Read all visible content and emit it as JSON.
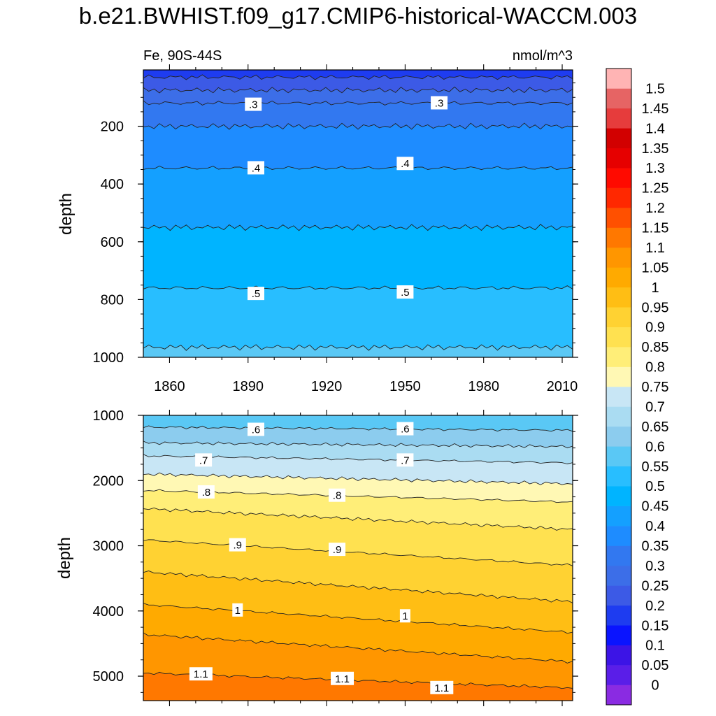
{
  "title": "b.e21.BWHIST.f09_g17.CMIP6-historical-WACCM.003",
  "colors": {
    "levels": [
      0,
      0.05,
      0.1,
      0.15,
      0.2,
      0.25,
      0.3,
      0.35,
      0.4,
      0.45,
      0.5,
      0.55,
      0.6,
      0.65,
      0.7,
      0.75,
      0.8,
      0.85,
      0.9,
      0.95,
      1,
      1.05,
      1.1,
      1.15,
      1.2,
      1.25,
      1.3,
      1.35,
      1.4,
      1.45,
      1.5
    ],
    "fills": [
      "#8a2be2",
      "#5a1ee8",
      "#3c14e6",
      "#0a14ff",
      "#1e3cf0",
      "#3c5ae6",
      "#3c6ee8",
      "#3278f0",
      "#1e8cff",
      "#14a0ff",
      "#00b4ff",
      "#28beff",
      "#5ac8f5",
      "#8cccee",
      "#aadcf2",
      "#c8e6f5",
      "#fff8b4",
      "#ffee78",
      "#ffe150",
      "#ffd232",
      "#ffbe14",
      "#ffaa00",
      "#ff9600",
      "#ff7800",
      "#ff5000",
      "#ff2800",
      "#ff0a00",
      "#e60000",
      "#d20000",
      "#e63c3c",
      "#e66464",
      "#ffb4b4"
    ]
  },
  "colorbar": {
    "labels": [
      "1.5",
      "1.45",
      "1.4",
      "1.35",
      "1.3",
      "1.25",
      "1.2",
      "1.15",
      "1.1",
      "1.05",
      "1",
      "0.95",
      "0.9",
      "0.85",
      "0.8",
      "0.75",
      "0.7",
      "0.65",
      "0.6",
      "0.55",
      "0.5",
      "0.45",
      "0.4",
      "0.35",
      "0.3",
      "0.25",
      "0.2",
      "0.15",
      "0.1",
      "0.05",
      "0"
    ]
  },
  "chart_data": [
    {
      "type": "heatmap",
      "subtype": "filled-contour",
      "left_label": "Fe, 90S-44S",
      "right_label": "nmol/m^3",
      "xlabel": "",
      "ylabel": "depth",
      "xlim": [
        1850,
        2014
      ],
      "ylim": [
        1000,
        5
      ],
      "xticks": [
        "1860",
        "1890",
        "1920",
        "1950",
        "1980",
        "2010"
      ],
      "yticks": [
        "200",
        "400",
        "600",
        "800",
        "1000"
      ],
      "contours": [
        {
          "level": 0.2,
          "depth": 30
        },
        {
          "level": 0.25,
          "depth": 75
        },
        {
          "level": 0.3,
          "depth": 120
        },
        {
          "level": 0.35,
          "depth": 200
        },
        {
          "level": 0.4,
          "depth": 345
        },
        {
          "level": 0.45,
          "depth": 550
        },
        {
          "level": 0.5,
          "depth": 760
        },
        {
          "level": 0.55,
          "depth": 965
        }
      ],
      "contour_labels": [
        {
          "text": ".3",
          "year": 1892,
          "depth": 125
        },
        {
          "text": ".3",
          "year": 1963,
          "depth": 120
        },
        {
          "text": ".4",
          "year": 1893,
          "depth": 345
        },
        {
          "text": ".4",
          "year": 1950,
          "depth": 330
        },
        {
          "text": ".5",
          "year": 1893,
          "depth": 780
        },
        {
          "text": ".5",
          "year": 1950,
          "depth": 775
        }
      ]
    },
    {
      "type": "heatmap",
      "subtype": "filled-contour",
      "xlabel": "",
      "ylabel": "depth",
      "xlim": [
        1850,
        2014
      ],
      "ylim": [
        5375,
        1000
      ],
      "yticks": [
        "1000",
        "2000",
        "3000",
        "4000",
        "5000"
      ],
      "contours": [
        {
          "level": 0.6,
          "depth_start": 1180,
          "depth_end": 1230
        },
        {
          "level": 0.65,
          "depth_start": 1420,
          "depth_end": 1480
        },
        {
          "level": 0.7,
          "depth_start": 1620,
          "depth_end": 1730
        },
        {
          "level": 0.75,
          "depth_start": 1900,
          "depth_end": 2050
        },
        {
          "level": 0.8,
          "depth_start": 2150,
          "depth_end": 2330
        },
        {
          "level": 0.85,
          "depth_start": 2430,
          "depth_end": 2750
        },
        {
          "level": 0.9,
          "depth_start": 2910,
          "depth_end": 3300
        },
        {
          "level": 0.95,
          "depth_start": 3400,
          "depth_end": 3860
        },
        {
          "level": 1.0,
          "depth_start": 3900,
          "depth_end": 4330
        },
        {
          "level": 1.05,
          "depth_start": 4360,
          "depth_end": 4780
        },
        {
          "level": 1.1,
          "depth_start": 4950,
          "depth_end": 5180
        }
      ],
      "contour_labels": [
        {
          "text": ".6",
          "year": 1893,
          "depth": 1220
        },
        {
          "text": ".6",
          "year": 1950,
          "depth": 1210
        },
        {
          "text": ".7",
          "year": 1873,
          "depth": 1690
        },
        {
          "text": ".7",
          "year": 1950,
          "depth": 1690
        },
        {
          "text": ".8",
          "year": 1874,
          "depth": 2180
        },
        {
          "text": ".8",
          "year": 1924,
          "depth": 2230
        },
        {
          "text": ".9",
          "year": 1886,
          "depth": 2990
        },
        {
          "text": ".9",
          "year": 1924,
          "depth": 3060
        },
        {
          "text": "1",
          "year": 1886,
          "depth": 3990
        },
        {
          "text": "1",
          "year": 1950,
          "depth": 4080
        },
        {
          "text": "1.1",
          "year": 1872,
          "depth": 4970
        },
        {
          "text": "1.1",
          "year": 1926,
          "depth": 5040
        },
        {
          "text": "1.1",
          "year": 1964,
          "depth": 5180
        }
      ]
    }
  ]
}
